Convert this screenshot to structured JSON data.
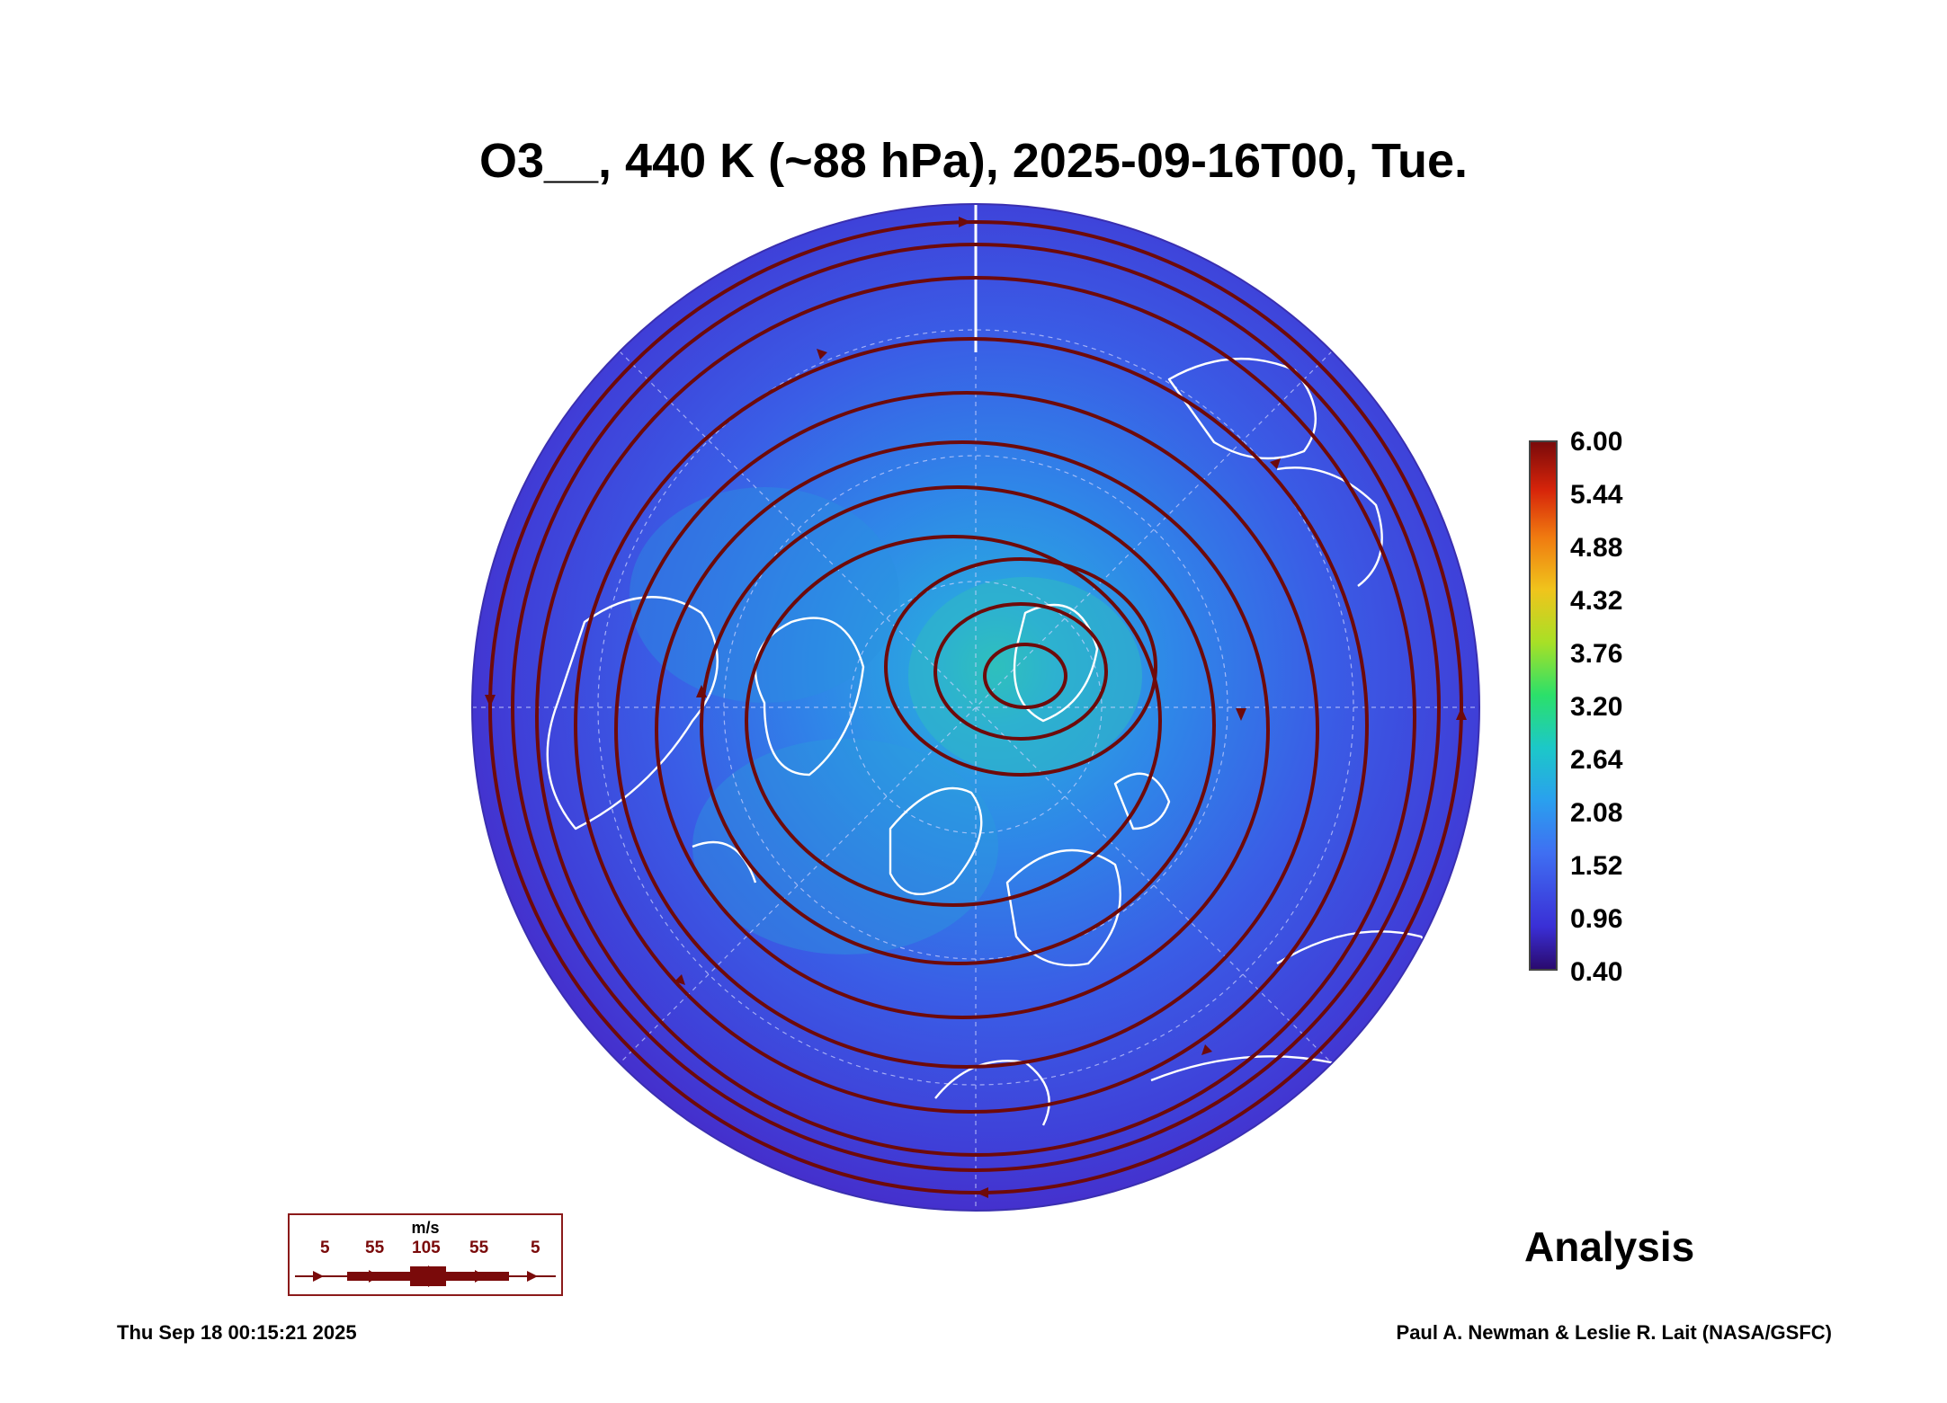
{
  "title": "O3__, 440 K (~88 hPa), 2025-09-16T00, Tue.",
  "colorbar": {
    "ticks": [
      "6.00",
      "5.44",
      "4.88",
      "4.32",
      "3.76",
      "3.20",
      "2.64",
      "2.08",
      "1.52",
      "0.96",
      "0.40"
    ],
    "colors": {
      "low": "#2a0a6e",
      "mid": "#2aa0ee",
      "high": "#7a0a0a"
    }
  },
  "legend": {
    "unit": "m/s",
    "speeds": [
      "5",
      "55",
      "105",
      "55",
      "5"
    ],
    "color": "#7a0a0a"
  },
  "label": "Analysis",
  "timestamp": "Thu Sep 18 00:15:21 2025",
  "credit": "Paul A. Newman & Leslie R. Lait (NASA/GSFC)",
  "map": {
    "projection": "north-polar-stereographic",
    "streamline_color": "#6e0a0a",
    "coastline_color": "#ffffff",
    "ocean_fill": "#3a4ee0"
  }
}
